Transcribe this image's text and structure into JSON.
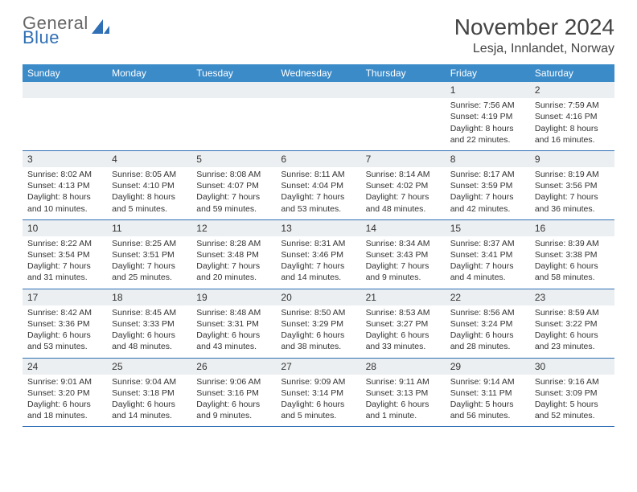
{
  "brand": {
    "line1": "General",
    "line2": "Blue"
  },
  "title": "November 2024",
  "location": "Lesja, Innlandet, Norway",
  "colors": {
    "header_bg": "#3b8bc9",
    "rule": "#2f6fb5",
    "shade": "#eceff1",
    "text": "#333333",
    "page_bg": "#ffffff"
  },
  "dayNames": [
    "Sunday",
    "Monday",
    "Tuesday",
    "Wednesday",
    "Thursday",
    "Friday",
    "Saturday"
  ],
  "weeks": [
    [
      null,
      null,
      null,
      null,
      null,
      {
        "n": "1",
        "sr": "Sunrise: 7:56 AM",
        "ss": "Sunset: 4:19 PM",
        "d1": "Daylight: 8 hours",
        "d2": "and 22 minutes."
      },
      {
        "n": "2",
        "sr": "Sunrise: 7:59 AM",
        "ss": "Sunset: 4:16 PM",
        "d1": "Daylight: 8 hours",
        "d2": "and 16 minutes."
      }
    ],
    [
      {
        "n": "3",
        "sr": "Sunrise: 8:02 AM",
        "ss": "Sunset: 4:13 PM",
        "d1": "Daylight: 8 hours",
        "d2": "and 10 minutes."
      },
      {
        "n": "4",
        "sr": "Sunrise: 8:05 AM",
        "ss": "Sunset: 4:10 PM",
        "d1": "Daylight: 8 hours",
        "d2": "and 5 minutes."
      },
      {
        "n": "5",
        "sr": "Sunrise: 8:08 AM",
        "ss": "Sunset: 4:07 PM",
        "d1": "Daylight: 7 hours",
        "d2": "and 59 minutes."
      },
      {
        "n": "6",
        "sr": "Sunrise: 8:11 AM",
        "ss": "Sunset: 4:04 PM",
        "d1": "Daylight: 7 hours",
        "d2": "and 53 minutes."
      },
      {
        "n": "7",
        "sr": "Sunrise: 8:14 AM",
        "ss": "Sunset: 4:02 PM",
        "d1": "Daylight: 7 hours",
        "d2": "and 48 minutes."
      },
      {
        "n": "8",
        "sr": "Sunrise: 8:17 AM",
        "ss": "Sunset: 3:59 PM",
        "d1": "Daylight: 7 hours",
        "d2": "and 42 minutes."
      },
      {
        "n": "9",
        "sr": "Sunrise: 8:19 AM",
        "ss": "Sunset: 3:56 PM",
        "d1": "Daylight: 7 hours",
        "d2": "and 36 minutes."
      }
    ],
    [
      {
        "n": "10",
        "sr": "Sunrise: 8:22 AM",
        "ss": "Sunset: 3:54 PM",
        "d1": "Daylight: 7 hours",
        "d2": "and 31 minutes."
      },
      {
        "n": "11",
        "sr": "Sunrise: 8:25 AM",
        "ss": "Sunset: 3:51 PM",
        "d1": "Daylight: 7 hours",
        "d2": "and 25 minutes."
      },
      {
        "n": "12",
        "sr": "Sunrise: 8:28 AM",
        "ss": "Sunset: 3:48 PM",
        "d1": "Daylight: 7 hours",
        "d2": "and 20 minutes."
      },
      {
        "n": "13",
        "sr": "Sunrise: 8:31 AM",
        "ss": "Sunset: 3:46 PM",
        "d1": "Daylight: 7 hours",
        "d2": "and 14 minutes."
      },
      {
        "n": "14",
        "sr": "Sunrise: 8:34 AM",
        "ss": "Sunset: 3:43 PM",
        "d1": "Daylight: 7 hours",
        "d2": "and 9 minutes."
      },
      {
        "n": "15",
        "sr": "Sunrise: 8:37 AM",
        "ss": "Sunset: 3:41 PM",
        "d1": "Daylight: 7 hours",
        "d2": "and 4 minutes."
      },
      {
        "n": "16",
        "sr": "Sunrise: 8:39 AM",
        "ss": "Sunset: 3:38 PM",
        "d1": "Daylight: 6 hours",
        "d2": "and 58 minutes."
      }
    ],
    [
      {
        "n": "17",
        "sr": "Sunrise: 8:42 AM",
        "ss": "Sunset: 3:36 PM",
        "d1": "Daylight: 6 hours",
        "d2": "and 53 minutes."
      },
      {
        "n": "18",
        "sr": "Sunrise: 8:45 AM",
        "ss": "Sunset: 3:33 PM",
        "d1": "Daylight: 6 hours",
        "d2": "and 48 minutes."
      },
      {
        "n": "19",
        "sr": "Sunrise: 8:48 AM",
        "ss": "Sunset: 3:31 PM",
        "d1": "Daylight: 6 hours",
        "d2": "and 43 minutes."
      },
      {
        "n": "20",
        "sr": "Sunrise: 8:50 AM",
        "ss": "Sunset: 3:29 PM",
        "d1": "Daylight: 6 hours",
        "d2": "and 38 minutes."
      },
      {
        "n": "21",
        "sr": "Sunrise: 8:53 AM",
        "ss": "Sunset: 3:27 PM",
        "d1": "Daylight: 6 hours",
        "d2": "and 33 minutes."
      },
      {
        "n": "22",
        "sr": "Sunrise: 8:56 AM",
        "ss": "Sunset: 3:24 PM",
        "d1": "Daylight: 6 hours",
        "d2": "and 28 minutes."
      },
      {
        "n": "23",
        "sr": "Sunrise: 8:59 AM",
        "ss": "Sunset: 3:22 PM",
        "d1": "Daylight: 6 hours",
        "d2": "and 23 minutes."
      }
    ],
    [
      {
        "n": "24",
        "sr": "Sunrise: 9:01 AM",
        "ss": "Sunset: 3:20 PM",
        "d1": "Daylight: 6 hours",
        "d2": "and 18 minutes."
      },
      {
        "n": "25",
        "sr": "Sunrise: 9:04 AM",
        "ss": "Sunset: 3:18 PM",
        "d1": "Daylight: 6 hours",
        "d2": "and 14 minutes."
      },
      {
        "n": "26",
        "sr": "Sunrise: 9:06 AM",
        "ss": "Sunset: 3:16 PM",
        "d1": "Daylight: 6 hours",
        "d2": "and 9 minutes."
      },
      {
        "n": "27",
        "sr": "Sunrise: 9:09 AM",
        "ss": "Sunset: 3:14 PM",
        "d1": "Daylight: 6 hours",
        "d2": "and 5 minutes."
      },
      {
        "n": "28",
        "sr": "Sunrise: 9:11 AM",
        "ss": "Sunset: 3:13 PM",
        "d1": "Daylight: 6 hours",
        "d2": "and 1 minute."
      },
      {
        "n": "29",
        "sr": "Sunrise: 9:14 AM",
        "ss": "Sunset: 3:11 PM",
        "d1": "Daylight: 5 hours",
        "d2": "and 56 minutes."
      },
      {
        "n": "30",
        "sr": "Sunrise: 9:16 AM",
        "ss": "Sunset: 3:09 PM",
        "d1": "Daylight: 5 hours",
        "d2": "and 52 minutes."
      }
    ]
  ]
}
